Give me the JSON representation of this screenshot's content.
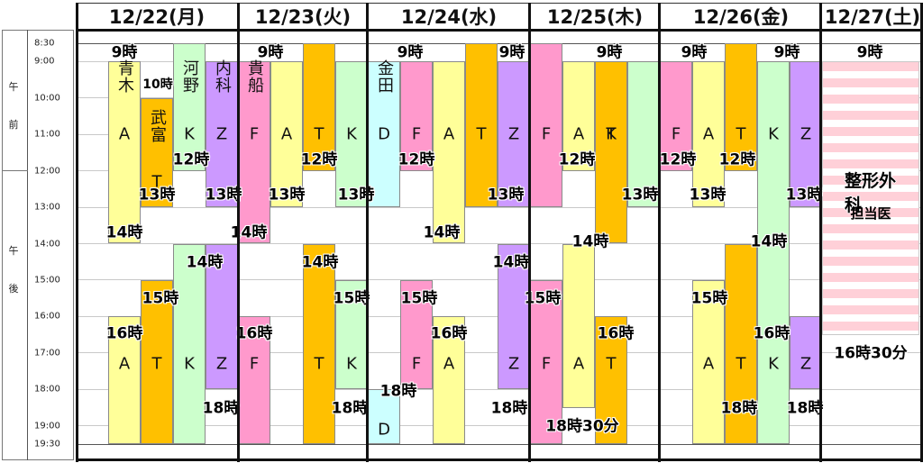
{
  "days": [
    "12/22(月)",
    "12/23(火)",
    "12/24(水)",
    "12/25(木)",
    "12/26(金)",
    "12/27(土)"
  ],
  "time_rows": [
    "8:30",
    "9:00",
    "10:00",
    "11:00",
    "12:00",
    "13:00",
    "14:00",
    "15:00",
    "16:00",
    "17:00",
    "18:00",
    "19:00",
    "19:30"
  ],
  "ampm": {
    "am": [
      "午",
      "前"
    ],
    "pm": [
      "午",
      "後"
    ]
  },
  "bars": [
    {
      "col": "y",
      "x": 0,
      "s": 9.0,
      "e": 14.0
    },
    {
      "col": "o",
      "x": 1,
      "s": 10.0,
      "e": 13.0
    },
    {
      "col": "g",
      "x": 2,
      "s": 8.5,
      "e": 12.0
    },
    {
      "col": "p",
      "x": 3,
      "s": 9.0,
      "e": 13.0
    },
    {
      "col": "y",
      "x": 0,
      "s": 16.0,
      "e": 19.5
    },
    {
      "col": "o",
      "x": 1,
      "s": 15.0,
      "e": 19.5
    },
    {
      "col": "g",
      "x": 2,
      "s": 14.0,
      "e": 19.5
    },
    {
      "col": "p",
      "x": 3,
      "s": 14.0,
      "e": 18.0
    },
    {
      "col": "k",
      "x": 4,
      "s": 9.0,
      "e": 14.0
    },
    {
      "col": "y",
      "x": 5,
      "s": 9.0,
      "e": 13.0
    },
    {
      "col": "o",
      "x": 6,
      "s": 8.5,
      "e": 12.0
    },
    {
      "col": "g",
      "x": 7,
      "s": 9.0,
      "e": 13.0
    },
    {
      "col": "k",
      "x": 4,
      "s": 16.0,
      "e": 19.5
    },
    {
      "col": "o",
      "x": 6,
      "s": 14.0,
      "e": 19.5
    },
    {
      "col": "g",
      "x": 7,
      "s": 15.0,
      "e": 18.0
    },
    {
      "col": "c",
      "x": 8,
      "s": 9.0,
      "e": 13.0
    },
    {
      "col": "k",
      "x": 9,
      "s": 9.0,
      "e": 12.0
    },
    {
      "col": "y",
      "x": 10,
      "s": 9.0,
      "e": 14.0
    },
    {
      "col": "o",
      "x": 11,
      "s": 8.5,
      "e": 13.0
    },
    {
      "col": "p",
      "x": 12,
      "s": 9.0,
      "e": 13.0
    },
    {
      "col": "c",
      "x": 8,
      "s": 18.0,
      "e": 19.5
    },
    {
      "col": "k",
      "x": 9,
      "s": 15.0,
      "e": 18.0
    },
    {
      "col": "y",
      "x": 10,
      "s": 16.0,
      "e": 19.5
    },
    {
      "col": "p",
      "x": 12,
      "s": 14.0,
      "e": 18.0
    },
    {
      "col": "k",
      "x": 13,
      "s": 8.5,
      "e": 13.0
    },
    {
      "col": "y",
      "x": 14,
      "s": 9.0,
      "e": 12.0
    },
    {
      "col": "g",
      "x": 15,
      "s": 9.0,
      "e": 12.0
    },
    {
      "col": "o",
      "x": 16,
      "s": 9.0,
      "e": 14.0
    },
    {
      "col": "g",
      "x": 17,
      "s": 9.0,
      "e": 13.0
    },
    {
      "col": "k",
      "x": 13,
      "s": 15.0,
      "e": 19.5
    },
    {
      "col": "y",
      "x": 14,
      "s": 14.0,
      "e": 18.5
    },
    {
      "col": "o",
      "x": 16,
      "s": 16.0,
      "e": 19.5
    },
    {
      "col": "k",
      "x": 18,
      "s": 9.0,
      "e": 12.0
    },
    {
      "col": "y",
      "x": 19,
      "s": 9.0,
      "e": 13.0
    },
    {
      "col": "o",
      "x": 20,
      "s": 8.5,
      "e": 12.0
    },
    {
      "col": "g",
      "x": 21,
      "s": 9.0,
      "e": 19.5
    },
    {
      "col": "p",
      "x": 22,
      "s": 9.0,
      "e": 13.0
    },
    {
      "col": "y",
      "x": 19,
      "s": 15.0,
      "e": 19.5
    },
    {
      "col": "o",
      "x": 20,
      "s": 14.0,
      "e": 19.5
    },
    {
      "col": "p",
      "x": 22,
      "s": 16.0,
      "e": 18.0
    },
    {
      "col": "st",
      "x": 23,
      "s": 9.0,
      "e": 16.5
    }
  ],
  "bar_labels": [
    {
      "x": 0,
      "t": "A",
      "r": 11.0
    },
    {
      "x": 1,
      "t": "T",
      "r": 12.3
    },
    {
      "x": 2,
      "t": "K",
      "r": 11.0
    },
    {
      "x": 3,
      "t": "Z",
      "r": 11.0
    },
    {
      "x": 4,
      "t": "F",
      "r": 11.0
    },
    {
      "x": 5,
      "t": "A",
      "r": 11.0
    },
    {
      "x": 6,
      "t": "T",
      "r": 11.0
    },
    {
      "x": 7,
      "t": "K",
      "r": 11.0
    },
    {
      "x": 8,
      "t": "D",
      "r": 11.0
    },
    {
      "x": 9,
      "t": "F",
      "r": 11.0
    },
    {
      "x": 10,
      "t": "A",
      "r": 11.0
    },
    {
      "x": 11,
      "t": "T",
      "r": 11.0
    },
    {
      "x": 12,
      "t": "Z",
      "r": 11.0
    },
    {
      "x": 13,
      "t": "F",
      "r": 11.0
    },
    {
      "x": 14,
      "t": "A",
      "r": 11.0
    },
    {
      "x": 15,
      "t": "T",
      "r": 11.0
    },
    {
      "x": 16,
      "t": "K",
      "r": 11.0
    },
    {
      "x": 18,
      "t": "F",
      "r": 11.0
    },
    {
      "x": 19,
      "t": "A",
      "r": 11.0
    },
    {
      "x": 20,
      "t": "T",
      "r": 11.0
    },
    {
      "x": 21,
      "t": "K",
      "r": 11.0
    },
    {
      "x": 22,
      "t": "Z",
      "r": 11.0
    },
    {
      "x": 0,
      "t": "A",
      "r": 17.3
    },
    {
      "x": 1,
      "t": "T",
      "r": 17.3
    },
    {
      "x": 2,
      "t": "K",
      "r": 17.3
    },
    {
      "x": 3,
      "t": "Z",
      "r": 17.3
    },
    {
      "x": 4,
      "t": "F",
      "r": 17.3
    },
    {
      "x": 6,
      "t": "T",
      "r": 17.3
    },
    {
      "x": 7,
      "t": "K",
      "r": 17.3
    },
    {
      "x": 8,
      "t": "D",
      "r": 19.1
    },
    {
      "x": 9,
      "t": "F",
      "r": 17.3
    },
    {
      "x": 10,
      "t": "A",
      "r": 17.3
    },
    {
      "x": 12,
      "t": "Z",
      "r": 17.3
    },
    {
      "x": 13,
      "t": "F",
      "r": 17.3
    },
    {
      "x": 14,
      "t": "A",
      "r": 17.3
    },
    {
      "x": 16,
      "t": "T",
      "r": 17.3
    },
    {
      "x": 19,
      "t": "A",
      "r": 17.3
    },
    {
      "x": 20,
      "t": "T",
      "r": 17.3
    },
    {
      "x": 21,
      "t": "K",
      "r": 17.3
    },
    {
      "x": 22,
      "t": "Z",
      "r": 17.3
    }
  ],
  "doctor_names": [
    {
      "x": 0,
      "t": "青木",
      "r": 9.05
    },
    {
      "x": 1,
      "t": "武富",
      "r": 10.1
    },
    {
      "x": 2,
      "t": "河野",
      "r": 9.05
    },
    {
      "x": 3,
      "t": "内科",
      "r": 9.05
    },
    {
      "x": 4,
      "t": "貴船",
      "r": 9.05
    },
    {
      "x": 8,
      "t": "金田",
      "r": 9.05
    }
  ],
  "time_labels": [
    {
      "t": "9時",
      "cx": 138,
      "r": 8.7
    },
    {
      "t": "10時",
      "cx": 175,
      "r": 9.6
    },
    {
      "t": "12時",
      "cx": 212,
      "r": 11.65
    },
    {
      "t": "13時",
      "cx": 174,
      "r": 12.6
    },
    {
      "t": "13時",
      "cx": 248,
      "r": 12.6
    },
    {
      "t": "14時",
      "cx": 138,
      "r": 13.65
    },
    {
      "t": "14時",
      "cx": 227,
      "r": 14.45
    },
    {
      "t": "15時",
      "cx": 178,
      "r": 15.45
    },
    {
      "t": "16時",
      "cx": 138,
      "r": 16.4
    },
    {
      "t": "18時",
      "cx": 245,
      "r": 18.45
    },
    {
      "t": "9時",
      "cx": 300,
      "r": 8.7
    },
    {
      "t": "12時",
      "cx": 354,
      "r": 11.65
    },
    {
      "t": "13時",
      "cx": 318,
      "r": 12.6
    },
    {
      "t": "13時",
      "cx": 395,
      "r": 12.6
    },
    {
      "t": "14時",
      "cx": 276,
      "r": 13.65
    },
    {
      "t": "14時",
      "cx": 355,
      "r": 14.45
    },
    {
      "t": "15時",
      "cx": 390,
      "r": 15.45
    },
    {
      "t": "16時",
      "cx": 282,
      "r": 16.4
    },
    {
      "t": "18時",
      "cx": 388,
      "r": 18.45
    },
    {
      "t": "9時",
      "cx": 455,
      "r": 8.7
    },
    {
      "t": "9時",
      "cx": 568,
      "r": 8.7
    },
    {
      "t": "12時",
      "cx": 462,
      "r": 11.65
    },
    {
      "t": "13時",
      "cx": 561,
      "r": 12.6
    },
    {
      "t": "14時",
      "cx": 490,
      "r": 13.65
    },
    {
      "t": "14時",
      "cx": 567,
      "r": 14.45
    },
    {
      "t": "15時",
      "cx": 465,
      "r": 15.45
    },
    {
      "t": "16時",
      "cx": 498,
      "r": 16.4
    },
    {
      "t": "18時",
      "cx": 442,
      "r": 18.0
    },
    {
      "t": "18時",
      "cx": 565,
      "r": 18.45
    },
    {
      "t": "9時",
      "cx": 676,
      "r": 8.7
    },
    {
      "t": "12時",
      "cx": 640,
      "r": 11.65
    },
    {
      "t": "13時",
      "cx": 710,
      "r": 12.6
    },
    {
      "t": "14時",
      "cx": 655,
      "r": 13.9
    },
    {
      "t": "15時",
      "cx": 602,
      "r": 15.45
    },
    {
      "t": "16時",
      "cx": 683,
      "r": 16.4
    },
    {
      "t": "18時30分",
      "cx": 646,
      "r": 18.95
    },
    {
      "t": "9時",
      "cx": 770,
      "r": 8.7
    },
    {
      "t": "9時",
      "cx": 873,
      "r": 8.7
    },
    {
      "t": "12時",
      "cx": 752,
      "r": 11.65
    },
    {
      "t": "12時",
      "cx": 818,
      "r": 11.65
    },
    {
      "t": "13時",
      "cx": 785,
      "r": 12.6
    },
    {
      "t": "13時",
      "cx": 892,
      "r": 12.6
    },
    {
      "t": "14時",
      "cx": 853,
      "r": 13.9
    },
    {
      "t": "15時",
      "cx": 787,
      "r": 15.45
    },
    {
      "t": "16時",
      "cx": 856,
      "r": 16.4
    },
    {
      "t": "18時",
      "cx": 820,
      "r": 18.45
    },
    {
      "t": "18時",
      "cx": 893,
      "r": 18.45
    },
    {
      "t": "9時",
      "cx": 965,
      "r": 8.7
    },
    {
      "t": "16時30分",
      "cx": 966,
      "r": 16.95
    }
  ],
  "saturday_block": {
    "title": "整形外科",
    "subtitle": "担当医"
  }
}
